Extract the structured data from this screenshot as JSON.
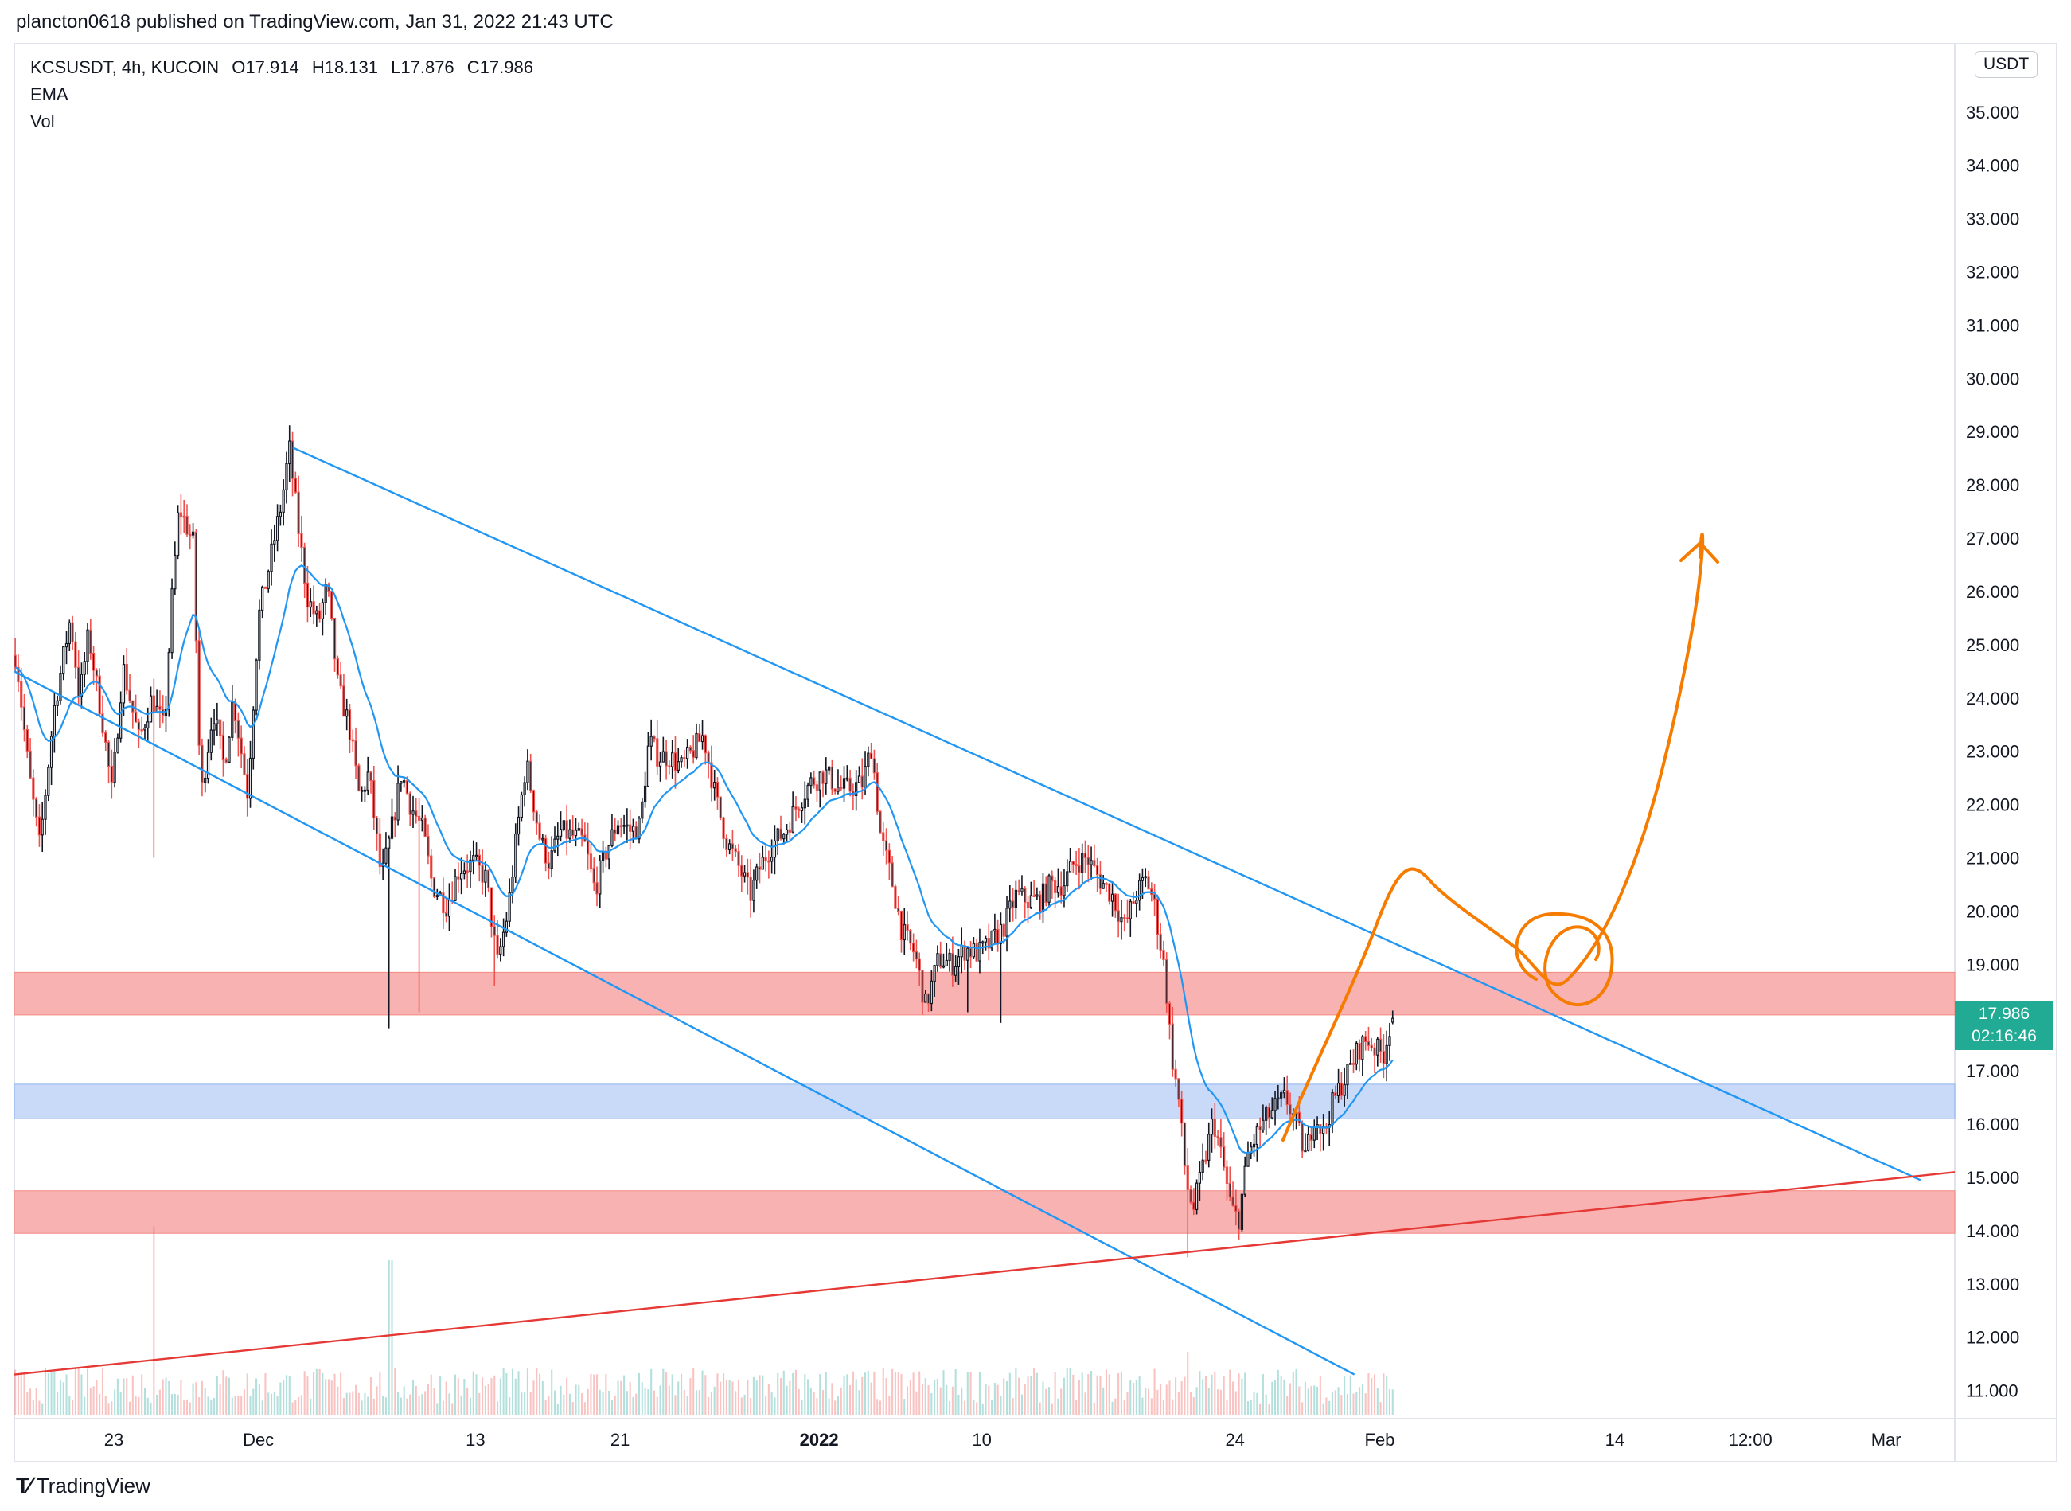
{
  "publisher_line": "plancton0618 published on TradingView.com, Jan 31, 2022 21:43 UTC",
  "legend": {
    "symbol": "KCSUSDT, 4h, KUCOIN",
    "open": "O17.914",
    "high": "H18.131",
    "low": "L17.876",
    "close": "C17.986",
    "indicator1": "EMA",
    "indicator2": "Vol"
  },
  "price_axis_unit": "USDT",
  "last_price": {
    "price": "17.986",
    "countdown": "02:16:46"
  },
  "brand": "TradingView",
  "colors": {
    "up": "#26a69a",
    "down": "#ef5350",
    "ema": "#2196f3",
    "channel": "#2196f3",
    "support_line": "#e53935",
    "red_zone": "#f8a5a5",
    "blue_zone": "#b7cef5",
    "projection": "#f57c00",
    "last_price_bg": "#22ab94"
  },
  "chart_data": {
    "type": "candlestick",
    "symbol": "KCSUSDT",
    "timeframe": "4h",
    "exchange": "KUCOIN",
    "ylim": [
      10.8,
      35.4
    ],
    "y_ticks": [
      "11.000",
      "12.000",
      "13.000",
      "14.000",
      "15.000",
      "16.000",
      "17.000",
      "18.000",
      "19.000",
      "20.000",
      "21.000",
      "22.000",
      "23.000",
      "24.000",
      "25.000",
      "26.000",
      "27.000",
      "28.000",
      "29.000",
      "30.000",
      "31.000",
      "32.000",
      "33.000",
      "34.000",
      "35.000"
    ],
    "x_ticks": [
      {
        "label": "23",
        "day": 23
      },
      {
        "label": "Dec",
        "day": 31
      },
      {
        "label": "13",
        "day": 43
      },
      {
        "label": "21",
        "day": 51
      },
      {
        "label": "2022",
        "day": 62,
        "bold": true
      },
      {
        "label": "10",
        "day": 71
      },
      {
        "label": "24",
        "day": 85
      },
      {
        "label": "Feb",
        "day": 93
      },
      {
        "label": "14",
        "day": 106
      },
      {
        "label": "12:00",
        "day": 113.5
      },
      {
        "label": "Mar",
        "day": 121
      }
    ],
    "x_day_range": [
      17.5,
      124.8
    ],
    "price_path": [
      [
        17.6,
        24.8
      ],
      [
        18.3,
        22.6
      ],
      [
        18.9,
        21.2
      ],
      [
        19.7,
        23.8
      ],
      [
        20.6,
        25.5
      ],
      [
        21.1,
        24.0
      ],
      [
        21.6,
        25.2
      ],
      [
        22.4,
        23.5
      ],
      [
        22.9,
        22.2
      ],
      [
        23.5,
        24.6
      ],
      [
        24.4,
        23.2
      ],
      [
        25.1,
        24.0
      ],
      [
        25.8,
        23.4
      ],
      [
        26.2,
        25.8
      ],
      [
        26.6,
        27.6
      ],
      [
        27.4,
        26.9
      ],
      [
        27.8,
        22.1
      ],
      [
        28.5,
        23.8
      ],
      [
        29.1,
        22.7
      ],
      [
        29.6,
        24.0
      ],
      [
        30.4,
        22.2
      ],
      [
        31.0,
        25.5
      ],
      [
        31.6,
        26.5
      ],
      [
        32.3,
        27.7
      ],
      [
        32.7,
        28.7
      ],
      [
        33.2,
        27.2
      ],
      [
        33.7,
        25.9
      ],
      [
        34.3,
        25.4
      ],
      [
        34.8,
        26.1
      ],
      [
        35.4,
        24.2
      ],
      [
        36.0,
        23.5
      ],
      [
        36.6,
        22.1
      ],
      [
        37.1,
        22.6
      ],
      [
        37.8,
        20.6
      ],
      [
        38.3,
        21.4
      ],
      [
        38.9,
        22.6
      ],
      [
        39.4,
        22.0
      ],
      [
        40.1,
        21.5
      ],
      [
        40.6,
        20.5
      ],
      [
        41.4,
        20.1
      ],
      [
        42.1,
        20.8
      ],
      [
        42.9,
        20.9
      ],
      [
        43.6,
        20.6
      ],
      [
        44.2,
        19.0
      ],
      [
        44.8,
        20.0
      ],
      [
        45.3,
        21.5
      ],
      [
        45.8,
        22.8
      ],
      [
        46.6,
        21.3
      ],
      [
        47.1,
        20.9
      ],
      [
        47.7,
        21.5
      ],
      [
        48.4,
        21.4
      ],
      [
        49.0,
        21.3
      ],
      [
        49.6,
        20.4
      ],
      [
        50.2,
        21.1
      ],
      [
        50.9,
        21.7
      ],
      [
        51.6,
        21.5
      ],
      [
        52.1,
        21.6
      ],
      [
        52.6,
        23.2
      ],
      [
        53.1,
        22.9
      ],
      [
        53.7,
        22.9
      ],
      [
        54.4,
        22.7
      ],
      [
        55.0,
        23.0
      ],
      [
        55.6,
        23.3
      ],
      [
        56.3,
        22.1
      ],
      [
        56.9,
        21.3
      ],
      [
        57.6,
        20.8
      ],
      [
        58.2,
        20.3
      ],
      [
        58.7,
        20.8
      ],
      [
        59.3,
        21.2
      ],
      [
        60.1,
        21.5
      ],
      [
        60.8,
        22.0
      ],
      [
        61.5,
        22.4
      ],
      [
        62.3,
        22.6
      ],
      [
        63.1,
        22.3
      ],
      [
        63.7,
        22.3
      ],
      [
        64.4,
        22.4
      ],
      [
        64.9,
        23.1
      ],
      [
        65.4,
        21.4
      ],
      [
        66.0,
        20.6
      ],
      [
        66.6,
        19.6
      ],
      [
        67.3,
        19.2
      ],
      [
        67.9,
        18.2
      ],
      [
        68.6,
        19.1
      ],
      [
        69.4,
        19.0
      ],
      [
        70.1,
        19.3
      ],
      [
        70.8,
        19.2
      ],
      [
        71.5,
        19.4
      ],
      [
        72.2,
        19.7
      ],
      [
        72.9,
        20.3
      ],
      [
        73.5,
        20.2
      ],
      [
        74.2,
        20.2
      ],
      [
        74.8,
        20.5
      ],
      [
        75.5,
        20.5
      ],
      [
        76.1,
        20.9
      ],
      [
        76.8,
        21.0
      ],
      [
        77.5,
        20.6
      ],
      [
        78.2,
        20.3
      ],
      [
        78.9,
        19.7
      ],
      [
        79.5,
        20.3
      ],
      [
        80.1,
        20.6
      ],
      [
        80.5,
        20.2
      ],
      [
        81.1,
        18.9
      ],
      [
        81.5,
        17.3
      ],
      [
        81.9,
        16.4
      ],
      [
        82.3,
        14.9
      ],
      [
        82.7,
        14.4
      ],
      [
        83.3,
        15.3
      ],
      [
        83.8,
        16.1
      ],
      [
        84.3,
        15.3
      ],
      [
        84.8,
        14.4
      ],
      [
        85.2,
        14.2
      ],
      [
        85.7,
        15.4
      ],
      [
        86.2,
        15.8
      ],
      [
        86.7,
        16.1
      ],
      [
        87.2,
        16.3
      ],
      [
        87.8,
        16.5
      ],
      [
        88.4,
        16.0
      ],
      [
        88.9,
        15.4
      ],
      [
        89.4,
        16.2
      ],
      [
        89.9,
        15.8
      ],
      [
        90.3,
        16.3
      ],
      [
        90.8,
        16.7
      ],
      [
        91.3,
        17.0
      ],
      [
        91.8,
        17.4
      ],
      [
        92.3,
        17.6
      ],
      [
        92.8,
        17.4
      ],
      [
        93.2,
        17.3
      ],
      [
        93.6,
        17.9
      ],
      [
        93.8,
        17.986
      ]
    ],
    "volume_spikes": [
      {
        "day": 25.2,
        "relative": 0.95
      },
      {
        "day": 38.3,
        "relative": 0.78
      },
      {
        "day": 82.4,
        "relative": 0.32
      },
      {
        "day": 70.2,
        "relative": 0.22
      }
    ],
    "zones": [
      {
        "name": "upper-resistance",
        "from": 18.05,
        "to": 18.85,
        "color": "red"
      },
      {
        "name": "middle-support",
        "from": 16.1,
        "to": 16.75,
        "color": "blue"
      },
      {
        "name": "lower-support",
        "from": 13.95,
        "to": 14.75,
        "color": "red"
      }
    ],
    "trendlines": [
      {
        "name": "channel-top",
        "from": [
          32.9,
          28.7
        ],
        "to": [
          122.9,
          14.95
        ],
        "color": "blue"
      },
      {
        "name": "channel-bottom",
        "from": [
          17.5,
          24.5
        ],
        "to": [
          91.6,
          11.3
        ],
        "color": "blue"
      },
      {
        "name": "rising-support",
        "from": [
          17.5,
          11.3
        ],
        "to": [
          124.8,
          15.1
        ],
        "color": "red"
      }
    ]
  }
}
